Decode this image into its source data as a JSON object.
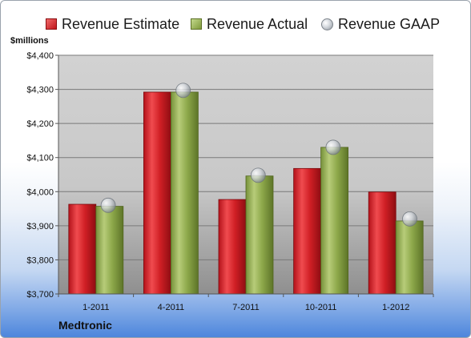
{
  "chart_data": {
    "type": "bar",
    "title": "",
    "unit_label": "$millions",
    "company": "Medtronic",
    "categories": [
      "1-2011",
      "4-2011",
      "7-2011",
      "10-2011",
      "1-2012"
    ],
    "series": [
      {
        "name": "Revenue Estimate",
        "type": "bar",
        "color": "#c8191f",
        "values": [
          3963,
          4292,
          3977,
          4068,
          3999
        ]
      },
      {
        "name": "Revenue Actual",
        "type": "bar",
        "color": "#8ea446",
        "values": [
          3957,
          4292,
          4046,
          4130,
          3914
        ]
      },
      {
        "name": "Revenue GAAP",
        "type": "scatter",
        "color": "#b9bec4",
        "values": [
          3960,
          4297,
          4048,
          4130,
          3920
        ]
      }
    ],
    "ylim": [
      3700,
      4400
    ],
    "yticks": [
      "$3,700",
      "$3,800",
      "$3,900",
      "$4,000",
      "$4,100",
      "$4,200",
      "$4,300",
      "$4,400"
    ],
    "ytick_values": [
      3700,
      3800,
      3900,
      4000,
      4100,
      4200,
      4300,
      4400
    ],
    "grid": true,
    "legend_position": "top"
  }
}
